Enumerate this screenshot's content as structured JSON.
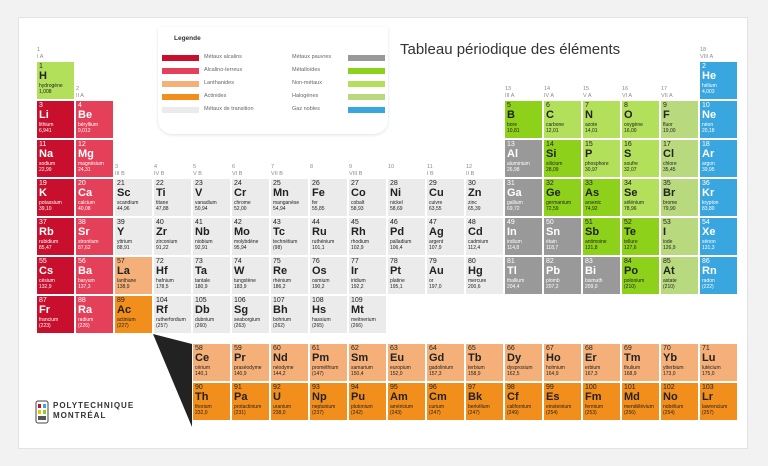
{
  "title": "Tableau périodique des éléments",
  "legend": {
    "title": "Legende",
    "items": [
      {
        "label": "Métaux alcalins",
        "color": "#c8102e"
      },
      {
        "label": "Alcalino-terreux",
        "color": "#e4405a"
      },
      {
        "label": "Lanthanides",
        "color": "#f4b078"
      },
      {
        "label": "Actinides",
        "color": "#f28e1c"
      },
      {
        "label": "Métaux de transition",
        "color": "#ebebeb"
      },
      {
        "label": "Métaux pauvres",
        "color": "#999999"
      },
      {
        "label": "Métalloïdes",
        "color": "#8ed11a"
      },
      {
        "label": "Non-métaux",
        "color": "#b2e05a"
      },
      {
        "label": "Halogènes",
        "color": "#b9d97e"
      },
      {
        "label": "Gaz nobles",
        "color": "#3aa6e0"
      }
    ]
  },
  "groups": [
    {
      "n": "1",
      "r": "I A",
      "col": 1
    },
    {
      "n": "2",
      "r": "II A",
      "col": 2
    },
    {
      "n": "3",
      "r": "III B",
      "col": 3
    },
    {
      "n": "4",
      "r": "IV B",
      "col": 4
    },
    {
      "n": "5",
      "r": "V B",
      "col": 5
    },
    {
      "n": "6",
      "r": "VI B",
      "col": 6
    },
    {
      "n": "7",
      "r": "VII B",
      "col": 7
    },
    {
      "n": "8",
      "r": "",
      "col": 8
    },
    {
      "n": "9",
      "r": "VIII B",
      "col": 9
    },
    {
      "n": "10",
      "r": "",
      "col": 10
    },
    {
      "n": "11",
      "r": "I B",
      "col": 11
    },
    {
      "n": "12",
      "r": "II B",
      "col": 12
    },
    {
      "n": "13",
      "r": "III A",
      "col": 13
    },
    {
      "n": "14",
      "r": "IV A",
      "col": 14
    },
    {
      "n": "15",
      "r": "V A",
      "col": 15
    },
    {
      "n": "16",
      "r": "VI A",
      "col": 16
    },
    {
      "n": "17",
      "r": "VII A",
      "col": 17
    },
    {
      "n": "18",
      "r": "VIII A",
      "col": 18
    }
  ],
  "elements": [
    {
      "n": 1,
      "s": "H",
      "nm": "hydrogène",
      "m": "1,008",
      "r": 1,
      "c": 1,
      "cat": "nonmetal"
    },
    {
      "n": 2,
      "s": "He",
      "nm": "hélium",
      "m": "4,003",
      "r": 1,
      "c": 18,
      "cat": "noble"
    },
    {
      "n": 3,
      "s": "Li",
      "nm": "lithium",
      "m": "6,941",
      "r": 2,
      "c": 1,
      "cat": "alkali"
    },
    {
      "n": 4,
      "s": "Be",
      "nm": "béryllium",
      "m": "9,012",
      "r": 2,
      "c": 2,
      "cat": "alkaline"
    },
    {
      "n": 5,
      "s": "B",
      "nm": "bore",
      "m": "10,81",
      "r": 2,
      "c": 13,
      "cat": "metalloid"
    },
    {
      "n": 6,
      "s": "C",
      "nm": "carbone",
      "m": "12,01",
      "r": 2,
      "c": 14,
      "cat": "nonmetal"
    },
    {
      "n": 7,
      "s": "N",
      "nm": "azote",
      "m": "14,01",
      "r": 2,
      "c": 15,
      "cat": "nonmetal"
    },
    {
      "n": 8,
      "s": "O",
      "nm": "oxygène",
      "m": "16,00",
      "r": 2,
      "c": 16,
      "cat": "nonmetal"
    },
    {
      "n": 9,
      "s": "F",
      "nm": "fluor",
      "m": "19,00",
      "r": 2,
      "c": 17,
      "cat": "halogen"
    },
    {
      "n": 10,
      "s": "Ne",
      "nm": "néon",
      "m": "20,18",
      "r": 2,
      "c": 18,
      "cat": "noble"
    },
    {
      "n": 11,
      "s": "Na",
      "nm": "sodium",
      "m": "22,99",
      "r": 3,
      "c": 1,
      "cat": "alkali"
    },
    {
      "n": 12,
      "s": "Mg",
      "nm": "magnésium",
      "m": "24,31",
      "r": 3,
      "c": 2,
      "cat": "alkaline"
    },
    {
      "n": 13,
      "s": "Al",
      "nm": "aluminium",
      "m": "26,98",
      "r": 3,
      "c": 13,
      "cat": "poor"
    },
    {
      "n": 14,
      "s": "Si",
      "nm": "silicium",
      "m": "28,09",
      "r": 3,
      "c": 14,
      "cat": "metalloid"
    },
    {
      "n": 15,
      "s": "P",
      "nm": "phosphore",
      "m": "30,97",
      "r": 3,
      "c": 15,
      "cat": "nonmetal"
    },
    {
      "n": 16,
      "s": "S",
      "nm": "soufre",
      "m": "32,07",
      "r": 3,
      "c": 16,
      "cat": "nonmetal"
    },
    {
      "n": 17,
      "s": "Cl",
      "nm": "chlore",
      "m": "35,45",
      "r": 3,
      "c": 17,
      "cat": "halogen"
    },
    {
      "n": 18,
      "s": "Ar",
      "nm": "argon",
      "m": "39,95",
      "r": 3,
      "c": 18,
      "cat": "noble"
    },
    {
      "n": 19,
      "s": "K",
      "nm": "potassium",
      "m": "39,10",
      "r": 4,
      "c": 1,
      "cat": "alkali"
    },
    {
      "n": 20,
      "s": "Ca",
      "nm": "calcium",
      "m": "40,08",
      "r": 4,
      "c": 2,
      "cat": "alkaline"
    },
    {
      "n": 21,
      "s": "Sc",
      "nm": "scandium",
      "m": "44,96",
      "r": 4,
      "c": 3,
      "cat": "transition"
    },
    {
      "n": 22,
      "s": "Ti",
      "nm": "titane",
      "m": "47,88",
      "r": 4,
      "c": 4,
      "cat": "transition"
    },
    {
      "n": 23,
      "s": "V",
      "nm": "vanadium",
      "m": "50,94",
      "r": 4,
      "c": 5,
      "cat": "transition"
    },
    {
      "n": 24,
      "s": "Cr",
      "nm": "chrome",
      "m": "52,00",
      "r": 4,
      "c": 6,
      "cat": "transition"
    },
    {
      "n": 25,
      "s": "Mn",
      "nm": "manganèse",
      "m": "54,94",
      "r": 4,
      "c": 7,
      "cat": "transition"
    },
    {
      "n": 26,
      "s": "Fe",
      "nm": "fer",
      "m": "55,85",
      "r": 4,
      "c": 8,
      "cat": "transition"
    },
    {
      "n": 27,
      "s": "Co",
      "nm": "cobalt",
      "m": "58,93",
      "r": 4,
      "c": 9,
      "cat": "transition"
    },
    {
      "n": 28,
      "s": "Ni",
      "nm": "nickel",
      "m": "58,69",
      "r": 4,
      "c": 10,
      "cat": "transition"
    },
    {
      "n": 29,
      "s": "Cu",
      "nm": "cuivre",
      "m": "63,55",
      "r": 4,
      "c": 11,
      "cat": "transition"
    },
    {
      "n": 30,
      "s": "Zn",
      "nm": "zinc",
      "m": "65,39",
      "r": 4,
      "c": 12,
      "cat": "transition"
    },
    {
      "n": 31,
      "s": "Ga",
      "nm": "gallium",
      "m": "69,72",
      "r": 4,
      "c": 13,
      "cat": "poor"
    },
    {
      "n": 32,
      "s": "Ge",
      "nm": "germanium",
      "m": "72,59",
      "r": 4,
      "c": 14,
      "cat": "metalloid"
    },
    {
      "n": 33,
      "s": "As",
      "nm": "arsenic",
      "m": "74,92",
      "r": 4,
      "c": 15,
      "cat": "metalloid"
    },
    {
      "n": 34,
      "s": "Se",
      "nm": "sélénium",
      "m": "78,96",
      "r": 4,
      "c": 16,
      "cat": "nonmetal"
    },
    {
      "n": 35,
      "s": "Br",
      "nm": "brome",
      "m": "79,90",
      "r": 4,
      "c": 17,
      "cat": "halogen"
    },
    {
      "n": 36,
      "s": "Kr",
      "nm": "krypton",
      "m": "83,80",
      "r": 4,
      "c": 18,
      "cat": "noble"
    },
    {
      "n": 37,
      "s": "Rb",
      "nm": "rubidium",
      "m": "85,47",
      "r": 5,
      "c": 1,
      "cat": "alkali"
    },
    {
      "n": 38,
      "s": "Sr",
      "nm": "strontium",
      "m": "87,62",
      "r": 5,
      "c": 2,
      "cat": "alkaline"
    },
    {
      "n": 39,
      "s": "Y",
      "nm": "yttrium",
      "m": "88,91",
      "r": 5,
      "c": 3,
      "cat": "transition"
    },
    {
      "n": 40,
      "s": "Zr",
      "nm": "zirconium",
      "m": "91,22",
      "r": 5,
      "c": 4,
      "cat": "transition"
    },
    {
      "n": 41,
      "s": "Nb",
      "nm": "niobium",
      "m": "92,91",
      "r": 5,
      "c": 5,
      "cat": "transition"
    },
    {
      "n": 42,
      "s": "Mo",
      "nm": "molybdène",
      "m": "95,94",
      "r": 5,
      "c": 6,
      "cat": "transition"
    },
    {
      "n": 43,
      "s": "Tc",
      "nm": "technétium",
      "m": "(98)",
      "r": 5,
      "c": 7,
      "cat": "transition"
    },
    {
      "n": 44,
      "s": "Ru",
      "nm": "ruthénium",
      "m": "101,1",
      "r": 5,
      "c": 8,
      "cat": "transition"
    },
    {
      "n": 45,
      "s": "Rh",
      "nm": "rhodium",
      "m": "102,9",
      "r": 5,
      "c": 9,
      "cat": "transition"
    },
    {
      "n": 46,
      "s": "Pd",
      "nm": "palladium",
      "m": "106,4",
      "r": 5,
      "c": 10,
      "cat": "transition"
    },
    {
      "n": 47,
      "s": "Ag",
      "nm": "argent",
      "m": "107,9",
      "r": 5,
      "c": 11,
      "cat": "transition"
    },
    {
      "n": 48,
      "s": "Cd",
      "nm": "cadmium",
      "m": "112,4",
      "r": 5,
      "c": 12,
      "cat": "transition"
    },
    {
      "n": 49,
      "s": "In",
      "nm": "indium",
      "m": "114,8",
      "r": 5,
      "c": 13,
      "cat": "poor"
    },
    {
      "n": 50,
      "s": "Sn",
      "nm": "étain",
      "m": "118,7",
      "r": 5,
      "c": 14,
      "cat": "poor"
    },
    {
      "n": 51,
      "s": "Sb",
      "nm": "antimoine",
      "m": "121,8",
      "r": 5,
      "c": 15,
      "cat": "metalloid"
    },
    {
      "n": 52,
      "s": "Te",
      "nm": "tellure",
      "m": "127,6",
      "r": 5,
      "c": 16,
      "cat": "metalloid"
    },
    {
      "n": 53,
      "s": "I",
      "nm": "iode",
      "m": "126,9",
      "r": 5,
      "c": 17,
      "cat": "halogen"
    },
    {
      "n": 54,
      "s": "Xe",
      "nm": "xénon",
      "m": "131,3",
      "r": 5,
      "c": 18,
      "cat": "noble"
    },
    {
      "n": 55,
      "s": "Cs",
      "nm": "césium",
      "m": "132,9",
      "r": 6,
      "c": 1,
      "cat": "alkali"
    },
    {
      "n": 56,
      "s": "Ba",
      "nm": "baryum",
      "m": "137,3",
      "r": 6,
      "c": 2,
      "cat": "alkaline"
    },
    {
      "n": 57,
      "s": "La",
      "nm": "lanthane",
      "m": "138,9",
      "r": 6,
      "c": 3,
      "cat": "lanthanide"
    },
    {
      "n": 72,
      "s": "Hf",
      "nm": "hafnium",
      "m": "178,5",
      "r": 6,
      "c": 4,
      "cat": "transition"
    },
    {
      "n": 73,
      "s": "Ta",
      "nm": "tantale",
      "m": "180,9",
      "r": 6,
      "c": 5,
      "cat": "transition"
    },
    {
      "n": 74,
      "s": "W",
      "nm": "tungstène",
      "m": "183,9",
      "r": 6,
      "c": 6,
      "cat": "transition"
    },
    {
      "n": 75,
      "s": "Re",
      "nm": "rhénium",
      "m": "186,2",
      "r": 6,
      "c": 7,
      "cat": "transition"
    },
    {
      "n": 76,
      "s": "Os",
      "nm": "osmium",
      "m": "190,2",
      "r": 6,
      "c": 8,
      "cat": "transition"
    },
    {
      "n": 77,
      "s": "Ir",
      "nm": "iridium",
      "m": "192,2",
      "r": 6,
      "c": 9,
      "cat": "transition"
    },
    {
      "n": 78,
      "s": "Pt",
      "nm": "platine",
      "m": "195,1",
      "r": 6,
      "c": 10,
      "cat": "transition"
    },
    {
      "n": 79,
      "s": "Au",
      "nm": "or",
      "m": "197,0",
      "r": 6,
      "c": 11,
      "cat": "transition"
    },
    {
      "n": 80,
      "s": "Hg",
      "nm": "mercure",
      "m": "200,6",
      "r": 6,
      "c": 12,
      "cat": "transition"
    },
    {
      "n": 81,
      "s": "Tl",
      "nm": "thallium",
      "m": "204,4",
      "r": 6,
      "c": 13,
      "cat": "poor"
    },
    {
      "n": 82,
      "s": "Pb",
      "nm": "plomb",
      "m": "207,2",
      "r": 6,
      "c": 14,
      "cat": "poor"
    },
    {
      "n": 83,
      "s": "Bi",
      "nm": "bismuth",
      "m": "209,0",
      "r": 6,
      "c": 15,
      "cat": "poor"
    },
    {
      "n": 84,
      "s": "Po",
      "nm": "polonium",
      "m": "(210)",
      "r": 6,
      "c": 16,
      "cat": "metalloid"
    },
    {
      "n": 85,
      "s": "At",
      "nm": "astate",
      "m": "(210)",
      "r": 6,
      "c": 17,
      "cat": "halogen"
    },
    {
      "n": 86,
      "s": "Rn",
      "nm": "radon",
      "m": "(222)",
      "r": 6,
      "c": 18,
      "cat": "noble"
    },
    {
      "n": 87,
      "s": "Fr",
      "nm": "francium",
      "m": "(223)",
      "r": 7,
      "c": 1,
      "cat": "alkali"
    },
    {
      "n": 88,
      "s": "Ra",
      "nm": "radium",
      "m": "(226)",
      "r": 7,
      "c": 2,
      "cat": "alkaline"
    },
    {
      "n": 89,
      "s": "Ac",
      "nm": "actinium",
      "m": "(227)",
      "r": 7,
      "c": 3,
      "cat": "actinide"
    },
    {
      "n": 104,
      "s": "Rf",
      "nm": "rutherfordium",
      "m": "(257)",
      "r": 7,
      "c": 4,
      "cat": "transition"
    },
    {
      "n": 105,
      "s": "Db",
      "nm": "dubnium",
      "m": "(260)",
      "r": 7,
      "c": 5,
      "cat": "transition"
    },
    {
      "n": 106,
      "s": "Sg",
      "nm": "seaborgium",
      "m": "(263)",
      "r": 7,
      "c": 6,
      "cat": "transition"
    },
    {
      "n": 107,
      "s": "Bh",
      "nm": "bohrium",
      "m": "(262)",
      "r": 7,
      "c": 7,
      "cat": "transition"
    },
    {
      "n": 108,
      "s": "Hs",
      "nm": "hassium",
      "m": "(265)",
      "r": 7,
      "c": 8,
      "cat": "transition"
    },
    {
      "n": 109,
      "s": "Mt",
      "nm": "meitnerium",
      "m": "(266)",
      "r": 7,
      "c": 9,
      "cat": "transition"
    },
    {
      "n": 58,
      "s": "Ce",
      "nm": "cérium",
      "m": "140,1",
      "r": 9,
      "c": 5,
      "cat": "lanthanide"
    },
    {
      "n": 59,
      "s": "Pr",
      "nm": "praséodyme",
      "m": "140,9",
      "r": 9,
      "c": 6,
      "cat": "lanthanide"
    },
    {
      "n": 60,
      "s": "Nd",
      "nm": "néodyme",
      "m": "144,2",
      "r": 9,
      "c": 7,
      "cat": "lanthanide"
    },
    {
      "n": 61,
      "s": "Pm",
      "nm": "prométhium",
      "m": "(147)",
      "r": 9,
      "c": 8,
      "cat": "lanthanide"
    },
    {
      "n": 62,
      "s": "Sm",
      "nm": "samarium",
      "m": "150,4",
      "r": 9,
      "c": 9,
      "cat": "lanthanide"
    },
    {
      "n": 63,
      "s": "Eu",
      "nm": "europium",
      "m": "152,0",
      "r": 9,
      "c": 10,
      "cat": "lanthanide"
    },
    {
      "n": 64,
      "s": "Gd",
      "nm": "gadolinium",
      "m": "157,3",
      "r": 9,
      "c": 11,
      "cat": "lanthanide"
    },
    {
      "n": 65,
      "s": "Tb",
      "nm": "terbium",
      "m": "158,9",
      "r": 9,
      "c": 12,
      "cat": "lanthanide"
    },
    {
      "n": 66,
      "s": "Dy",
      "nm": "dysprosium",
      "m": "162,5",
      "r": 9,
      "c": 13,
      "cat": "lanthanide"
    },
    {
      "n": 67,
      "s": "Ho",
      "nm": "holmium",
      "m": "164,9",
      "r": 9,
      "c": 14,
      "cat": "lanthanide"
    },
    {
      "n": 68,
      "s": "Er",
      "nm": "erbium",
      "m": "167,3",
      "r": 9,
      "c": 15,
      "cat": "lanthanide"
    },
    {
      "n": 69,
      "s": "Tm",
      "nm": "thulium",
      "m": "168,9",
      "r": 9,
      "c": 16,
      "cat": "lanthanide"
    },
    {
      "n": 70,
      "s": "Yb",
      "nm": "ytterbium",
      "m": "173,0",
      "r": 9,
      "c": 17,
      "cat": "lanthanide"
    },
    {
      "n": 71,
      "s": "Lu",
      "nm": "lutécium",
      "m": "175,0",
      "r": 9,
      "c": 18,
      "cat": "lanthanide"
    },
    {
      "n": 90,
      "s": "Th",
      "nm": "thorium",
      "m": "232,0",
      "r": 10,
      "c": 5,
      "cat": "actinide"
    },
    {
      "n": 91,
      "s": "Pa",
      "nm": "protactinium",
      "m": "(231)",
      "r": 10,
      "c": 6,
      "cat": "actinide"
    },
    {
      "n": 92,
      "s": "U",
      "nm": "uranium",
      "m": "238,0",
      "r": 10,
      "c": 7,
      "cat": "actinide"
    },
    {
      "n": 93,
      "s": "Np",
      "nm": "neptunium",
      "m": "(237)",
      "r": 10,
      "c": 8,
      "cat": "actinide"
    },
    {
      "n": 94,
      "s": "Pu",
      "nm": "plutonium",
      "m": "(242)",
      "r": 10,
      "c": 9,
      "cat": "actinide"
    },
    {
      "n": 95,
      "s": "Am",
      "nm": "américium",
      "m": "(243)",
      "r": 10,
      "c": 10,
      "cat": "actinide"
    },
    {
      "n": 96,
      "s": "Cm",
      "nm": "curium",
      "m": "(247)",
      "r": 10,
      "c": 11,
      "cat": "actinide"
    },
    {
      "n": 97,
      "s": "Bk",
      "nm": "berkélium",
      "m": "(247)",
      "r": 10,
      "c": 12,
      "cat": "actinide"
    },
    {
      "n": 98,
      "s": "Cf",
      "nm": "californium",
      "m": "(249)",
      "r": 10,
      "c": 13,
      "cat": "actinide"
    },
    {
      "n": 99,
      "s": "Es",
      "nm": "einsteinium",
      "m": "(254)",
      "r": 10,
      "c": 14,
      "cat": "actinide"
    },
    {
      "n": 100,
      "s": "Fm",
      "nm": "fermium",
      "m": "(253)",
      "r": 10,
      "c": 15,
      "cat": "actinide"
    },
    {
      "n": 101,
      "s": "Md",
      "nm": "mendélévium",
      "m": "(256)",
      "r": 10,
      "c": 16,
      "cat": "actinide"
    },
    {
      "n": 102,
      "s": "No",
      "nm": "nobélium",
      "m": "(254)",
      "r": 10,
      "c": 17,
      "cat": "actinide"
    },
    {
      "n": 103,
      "s": "Lr",
      "nm": "lawrencium",
      "m": "(257)",
      "r": 10,
      "c": 18,
      "cat": "actinide"
    }
  ],
  "colors": {
    "alkali": "#c8102e",
    "alkaline": "#e4405a",
    "lanthanide": "#f4b078",
    "actinide": "#f28e1c",
    "transition": "#ebebeb",
    "poor": "#999999",
    "metalloid": "#8ed11a",
    "nonmetal": "#b2e05a",
    "halogen": "#b9d97e",
    "noble": "#3aa6e0"
  },
  "logo": {
    "line1": "POLYTECHNIQUE",
    "line2": "MONTRÉAL"
  }
}
